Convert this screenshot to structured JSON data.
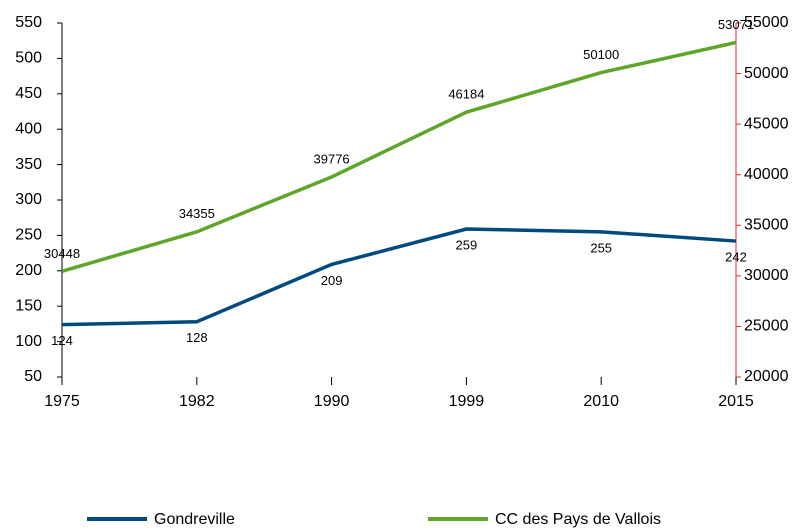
{
  "chart_data": {
    "type": "line",
    "categories": [
      "1975",
      "1982",
      "1990",
      "1999",
      "2010",
      "2015"
    ],
    "series": [
      {
        "name": "Gondreville",
        "color": "#004a80",
        "values": [
          124,
          128,
          209,
          259,
          255,
          242
        ]
      },
      {
        "name": "CC des Pays de Vallois",
        "color": "#5ea52a",
        "axis": "y2",
        "values": [
          30448,
          34355,
          39776,
          46184,
          50100,
          53071
        ]
      }
    ],
    "ylim": [
      50,
      550
    ],
    "yticks": [
      50,
      100,
      150,
      200,
      250,
      300,
      350,
      400,
      450,
      500,
      550
    ],
    "y2lim": [
      20000,
      55000
    ],
    "y2ticks": [
      20000,
      25000,
      30000,
      35000,
      40000,
      45000,
      50000,
      55000
    ],
    "y2color": "#e8292b"
  }
}
